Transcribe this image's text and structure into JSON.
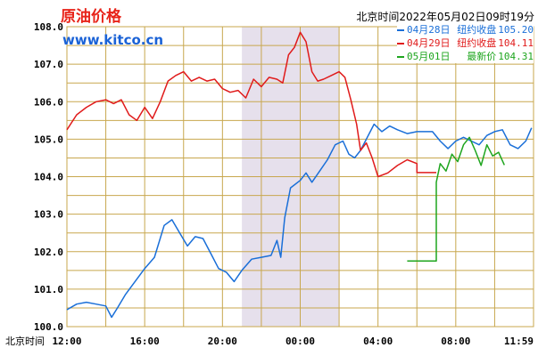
{
  "header": {
    "title": "原油价格",
    "site": "www.kitco.cn",
    "timestamp": "北京时间2022年05月02日09时19分"
  },
  "legend": [
    {
      "date": "04月28日",
      "label": "纽约收盘",
      "value": "105.20",
      "color": "#1a6fd8"
    },
    {
      "date": "04月29日",
      "label": "纽约收盘",
      "value": "104.11",
      "color": "#e01b1b"
    },
    {
      "date": "05月01日",
      "label": "最新价",
      "value": "104.31",
      "color": "#1ea51e"
    }
  ],
  "chart_data": {
    "type": "line",
    "xlabel": "北京时间",
    "x_ticks": [
      "12:00",
      "16:00",
      "20:00",
      "00:00",
      "04:00",
      "08:00",
      "11:59"
    ],
    "x_range_hours": [
      12,
      36
    ],
    "y_ticks": [
      "100.0",
      "101.0",
      "102.0",
      "103.0",
      "104.0",
      "105.0",
      "106.0",
      "107.0",
      "108.0"
    ],
    "ylim": [
      100,
      108
    ],
    "grid": true,
    "grid_color": "#c8a74e",
    "shaded_band_hours": [
      21,
      26
    ],
    "shaded_color": "#e6e0ec",
    "series": [
      {
        "name": "04月28日",
        "color": "#1a6fd8",
        "points": [
          [
            12,
            100.45
          ],
          [
            12.5,
            100.6
          ],
          [
            13,
            100.65
          ],
          [
            13.5,
            100.6
          ],
          [
            14,
            100.55
          ],
          [
            14.3,
            100.25
          ],
          [
            14.6,
            100.5
          ],
          [
            15,
            100.85
          ],
          [
            15.5,
            101.2
          ],
          [
            16,
            101.55
          ],
          [
            16.5,
            101.85
          ],
          [
            17,
            102.7
          ],
          [
            17.4,
            102.85
          ],
          [
            17.8,
            102.5
          ],
          [
            18.2,
            102.15
          ],
          [
            18.6,
            102.4
          ],
          [
            19,
            102.35
          ],
          [
            19.4,
            101.95
          ],
          [
            19.8,
            101.55
          ],
          [
            20.2,
            101.45
          ],
          [
            20.6,
            101.2
          ],
          [
            21,
            101.5
          ],
          [
            21.5,
            101.8
          ],
          [
            22,
            101.85
          ],
          [
            22.5,
            101.9
          ],
          [
            22.8,
            102.3
          ],
          [
            23,
            101.85
          ],
          [
            23.2,
            102.9
          ],
          [
            23.5,
            103.7
          ],
          [
            24,
            103.9
          ],
          [
            24.3,
            104.1
          ],
          [
            24.6,
            103.85
          ],
          [
            25,
            104.15
          ],
          [
            25.4,
            104.45
          ],
          [
            25.8,
            104.85
          ],
          [
            26.2,
            104.95
          ],
          [
            26.5,
            104.6
          ],
          [
            26.8,
            104.5
          ],
          [
            27.1,
            104.7
          ],
          [
            27.4,
            105.0
          ],
          [
            27.8,
            105.4
          ],
          [
            28.2,
            105.2
          ],
          [
            28.6,
            105.35
          ],
          [
            29,
            105.25
          ],
          [
            29.5,
            105.15
          ],
          [
            30,
            105.2
          ],
          [
            30.8,
            105.2
          ],
          [
            31.2,
            104.95
          ],
          [
            31.6,
            104.75
          ],
          [
            32,
            104.95
          ],
          [
            32.4,
            105.05
          ],
          [
            32.8,
            104.95
          ],
          [
            33.2,
            104.85
          ],
          [
            33.6,
            105.1
          ],
          [
            34,
            105.2
          ],
          [
            34.4,
            105.25
          ],
          [
            34.8,
            104.85
          ],
          [
            35.2,
            104.75
          ],
          [
            35.6,
            104.95
          ],
          [
            35.9,
            105.3
          ]
        ]
      },
      {
        "name": "04月29日",
        "color": "#e01b1b",
        "points": [
          [
            12,
            105.25
          ],
          [
            12.5,
            105.65
          ],
          [
            13,
            105.85
          ],
          [
            13.5,
            106.0
          ],
          [
            14,
            106.05
          ],
          [
            14.4,
            105.95
          ],
          [
            14.8,
            106.05
          ],
          [
            15.2,
            105.65
          ],
          [
            15.6,
            105.5
          ],
          [
            16,
            105.85
          ],
          [
            16.4,
            105.55
          ],
          [
            16.8,
            106.0
          ],
          [
            17.2,
            106.55
          ],
          [
            17.6,
            106.7
          ],
          [
            18,
            106.8
          ],
          [
            18.4,
            106.55
          ],
          [
            18.8,
            106.65
          ],
          [
            19.2,
            106.55
          ],
          [
            19.6,
            106.6
          ],
          [
            20,
            106.35
          ],
          [
            20.4,
            106.25
          ],
          [
            20.8,
            106.3
          ],
          [
            21.2,
            106.1
          ],
          [
            21.6,
            106.6
          ],
          [
            22,
            106.4
          ],
          [
            22.4,
            106.65
          ],
          [
            22.8,
            106.6
          ],
          [
            23.1,
            106.5
          ],
          [
            23.4,
            107.25
          ],
          [
            23.7,
            107.45
          ],
          [
            24,
            107.85
          ],
          [
            24.3,
            107.6
          ],
          [
            24.6,
            106.8
          ],
          [
            24.9,
            106.55
          ],
          [
            25.2,
            106.6
          ],
          [
            25.6,
            106.7
          ],
          [
            26,
            106.8
          ],
          [
            26.3,
            106.65
          ],
          [
            26.6,
            106.05
          ],
          [
            26.9,
            105.4
          ],
          [
            27.1,
            104.7
          ],
          [
            27.4,
            104.9
          ],
          [
            27.7,
            104.5
          ],
          [
            28.0,
            104.0
          ],
          [
            28.5,
            104.1
          ],
          [
            29,
            104.3
          ],
          [
            29.5,
            104.45
          ],
          [
            30.0,
            104.35
          ],
          [
            30,
            104.11
          ],
          [
            31,
            104.11
          ]
        ]
      },
      {
        "name": "05月01日",
        "color": "#1ea51e",
        "points": [
          [
            29.5,
            101.75
          ],
          [
            31,
            101.75
          ],
          [
            31,
            102.5
          ],
          [
            31,
            103.85
          ],
          [
            31.2,
            104.35
          ],
          [
            31.5,
            104.15
          ],
          [
            31.8,
            104.6
          ],
          [
            32.1,
            104.4
          ],
          [
            32.4,
            104.85
          ],
          [
            32.7,
            105.05
          ],
          [
            33,
            104.7
          ],
          [
            33.3,
            104.3
          ],
          [
            33.6,
            104.85
          ],
          [
            33.9,
            104.55
          ],
          [
            34.2,
            104.65
          ],
          [
            34.5,
            104.31
          ]
        ]
      }
    ]
  }
}
